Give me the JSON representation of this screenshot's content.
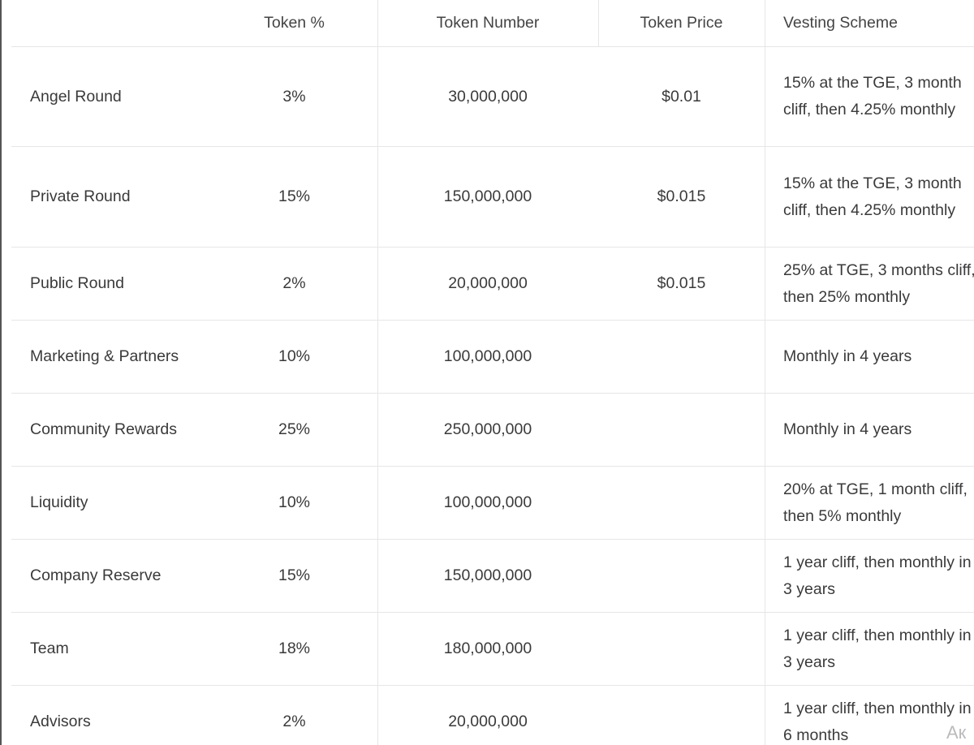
{
  "table": {
    "header": [
      "Token %",
      "Token Number",
      "Token Price",
      "Vesting Scheme"
    ],
    "rows": [
      {
        "name": "Angel Round",
        "percent": "3%",
        "number": "30,000,000",
        "price": "$0.01",
        "vesting": "15% at the TGE, 3 month cliff, then 4.25% monthly"
      },
      {
        "name": "Private Round",
        "percent": "15%",
        "number": "150,000,000",
        "price": "$0.015",
        "vesting": "15% at the TGE, 3 month cliff, then 4.25% monthly"
      },
      {
        "name": "Public Round",
        "percent": "2%",
        "number": "20,000,000",
        "price": "$0.015",
        "vesting": "25% at TGE, 3 months cliff, then 25% monthly"
      },
      {
        "name": "Marketing & Partners",
        "percent": "10%",
        "number": "100,000,000",
        "vesting": "Monthly in 4 years"
      },
      {
        "name": "Community Rewards",
        "percent": "25%",
        "number": "250,000,000",
        "vesting": "Monthly in 4 years"
      },
      {
        "name": "Liquidity",
        "percent": "10%",
        "number": "100,000,000",
        "vesting": "20% at TGE, 1 month cliff, then 5% monthly"
      },
      {
        "name": "Company Reserve",
        "percent": "15%",
        "number": "150,000,000",
        "vesting": "1 year cliff, then monthly in 3 years"
      },
      {
        "name": "Team",
        "percent": "18%",
        "number": "180,000,000",
        "vesting": "1 year cliff, then monthly in 3 years"
      },
      {
        "name": "Advisors",
        "percent": "2%",
        "number": "20,000,000",
        "vesting": "1 year cliff, then monthly in 6 months"
      }
    ],
    "watermark": "Ак"
  }
}
